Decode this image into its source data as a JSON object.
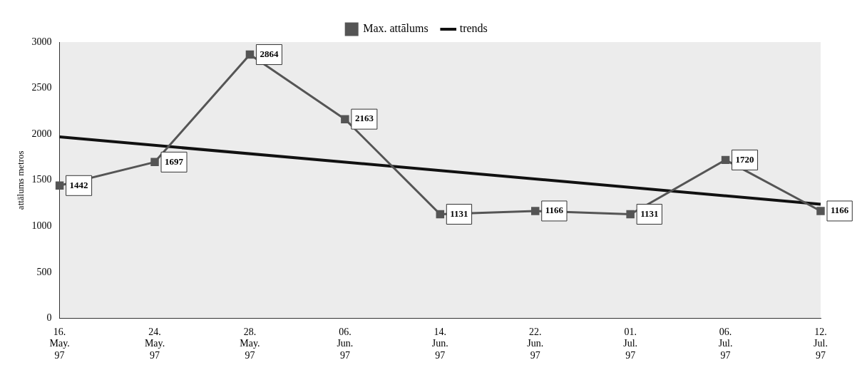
{
  "chart_data": {
    "type": "line",
    "ylabel": "attālums metros",
    "categories": [
      "16. May. 97",
      "24. May. 97",
      "28. May. 97",
      "06. Jun. 97",
      "14. Jun. 97",
      "22. Jun. 97",
      "01. Jul. 97",
      "06. Jul. 97",
      "12. Jul. 97"
    ],
    "series": [
      {
        "name": "Max. attālums",
        "color": "#555555",
        "values": [
          1442,
          1697,
          2864,
          2163,
          1131,
          1166,
          1131,
          1720,
          1166
        ],
        "value_labels": [
          "1442",
          "1697",
          "2864",
          "2163",
          "1131",
          "1166",
          "1131",
          "1720",
          "1166"
        ],
        "marker": "square"
      },
      {
        "name": "trends",
        "type": "line",
        "color": "#111111",
        "values": [
          1970,
          null,
          null,
          null,
          null,
          null,
          null,
          null,
          1240
        ],
        "marker": "none"
      }
    ],
    "ylim": [
      0,
      3000
    ],
    "yticks": [
      0,
      500,
      1000,
      1500,
      2000,
      2500,
      3000
    ],
    "grid": false,
    "legend": "top"
  }
}
